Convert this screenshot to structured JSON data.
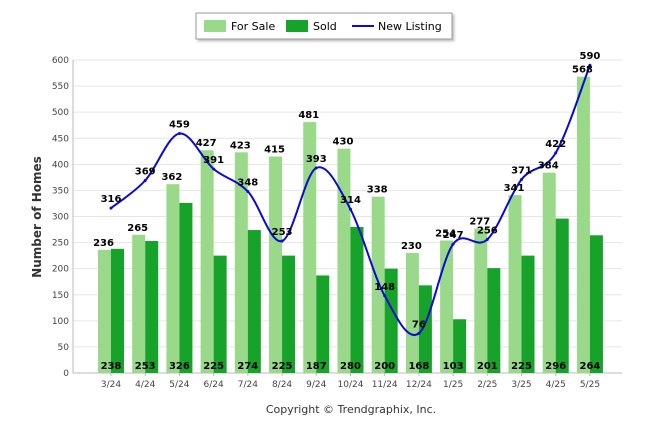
{
  "chart_data": {
    "type": "bar",
    "ylabel": "Number of Homes",
    "ylim": [
      0,
      600
    ],
    "yticks": [
      0,
      50,
      100,
      150,
      200,
      250,
      300,
      350,
      400,
      450,
      500,
      550,
      600
    ],
    "grid": true,
    "legend_position": "top-center",
    "categories": [
      "3/24",
      "4/24",
      "5/24",
      "6/24",
      "7/24",
      "8/24",
      "9/24",
      "10/24",
      "11/24",
      "12/24",
      "1/25",
      "2/25",
      "3/25",
      "4/25",
      "5/25"
    ],
    "series": [
      {
        "name": "For Sale",
        "type": "bar",
        "color": "#9ad98a",
        "values": [
          236,
          265,
          362,
          427,
          423,
          415,
          481,
          430,
          338,
          230,
          254,
          277,
          341,
          384,
          568
        ]
      },
      {
        "name": "Sold",
        "type": "bar",
        "color": "#17a22a",
        "values": [
          238,
          253,
          326,
          225,
          274,
          225,
          187,
          280,
          200,
          168,
          103,
          201,
          225,
          296,
          264
        ]
      },
      {
        "name": "New Listing",
        "type": "line",
        "color": "#0a0ad0",
        "values": [
          316,
          369,
          459,
          391,
          348,
          253,
          393,
          314,
          148,
          76,
          247,
          256,
          371,
          422,
          590
        ]
      }
    ],
    "footer": "Copyright © Trendgraphix, Inc."
  }
}
